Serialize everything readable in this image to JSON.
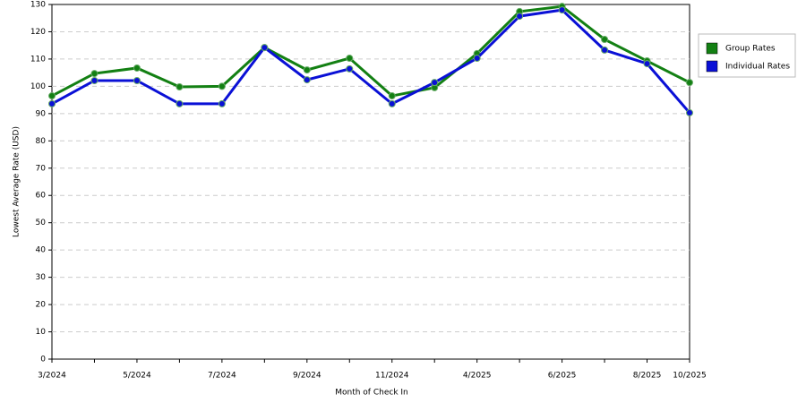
{
  "chart_data": {
    "type": "line",
    "x_label": "Month of Check In",
    "y_label": "Lowest Average Rate (USD)",
    "categories": [
      "3/2024",
      null,
      "5/2024",
      null,
      "7/2024",
      null,
      "9/2024",
      null,
      "11/2024",
      null,
      "4/2025",
      null,
      "6/2025",
      null,
      "8/2025",
      "10/2025"
    ],
    "series": [
      {
        "name": "Group Rates",
        "color": "#138013",
        "values": [
          96.5,
          104.7,
          106.7,
          99.8,
          100,
          114.2,
          106,
          110.3,
          96.5,
          99.5,
          112,
          127.4,
          129.3,
          117.2,
          109.3,
          101.4
        ]
      },
      {
        "name": "Individual Rates",
        "color": "#0a10d6",
        "values": [
          93.6,
          102.1,
          102.1,
          93.6,
          93.6,
          114.2,
          102.4,
          106.4,
          93.6,
          101.4,
          110.3,
          125.7,
          128,
          113.3,
          108.3,
          90.3
        ]
      }
    ],
    "ylim": [
      0,
      130
    ],
    "yticks": [
      0,
      10,
      20,
      30,
      40,
      50,
      60,
      70,
      80,
      90,
      100,
      110,
      120,
      130
    ],
    "grid": true,
    "legend": "right"
  }
}
